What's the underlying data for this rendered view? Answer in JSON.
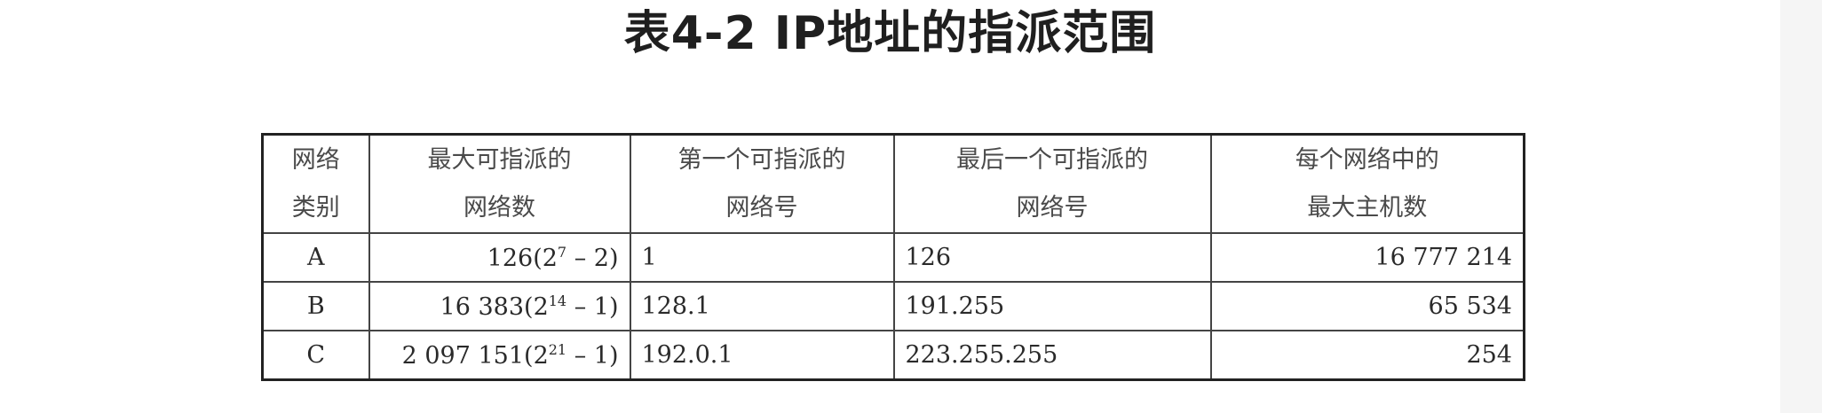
{
  "title": "表4-2 IP地址的指派范围",
  "table": {
    "header": {
      "network_class": [
        "网络",
        "类别"
      ],
      "max_networks": [
        "最大可指派的",
        "网络数"
      ],
      "first_network": [
        "第一个可指派的",
        "网络号"
      ],
      "last_network": [
        "最后一个可指派的",
        "网络号"
      ],
      "max_hosts": [
        "每个网络中的",
        "最大主机数"
      ]
    },
    "rows": [
      {
        "class": "A",
        "max_networks": {
          "count": "126",
          "open": "(2",
          "exp": "7",
          "close": " – 2)"
        },
        "first": "1",
        "last": "126",
        "hosts": "16 777 214"
      },
      {
        "class": "B",
        "max_networks": {
          "count": "16 383",
          "open": "(2",
          "exp": "14",
          "close": " – 1)"
        },
        "first": "128.1",
        "last": "191.255",
        "hosts": "65 534"
      },
      {
        "class": "C",
        "max_networks": {
          "count": "2 097 151",
          "open": "(2",
          "exp": "21",
          "close": " – 1)"
        },
        "first": "192.0.1",
        "last": "223.255.255",
        "hosts": "254"
      }
    ]
  }
}
